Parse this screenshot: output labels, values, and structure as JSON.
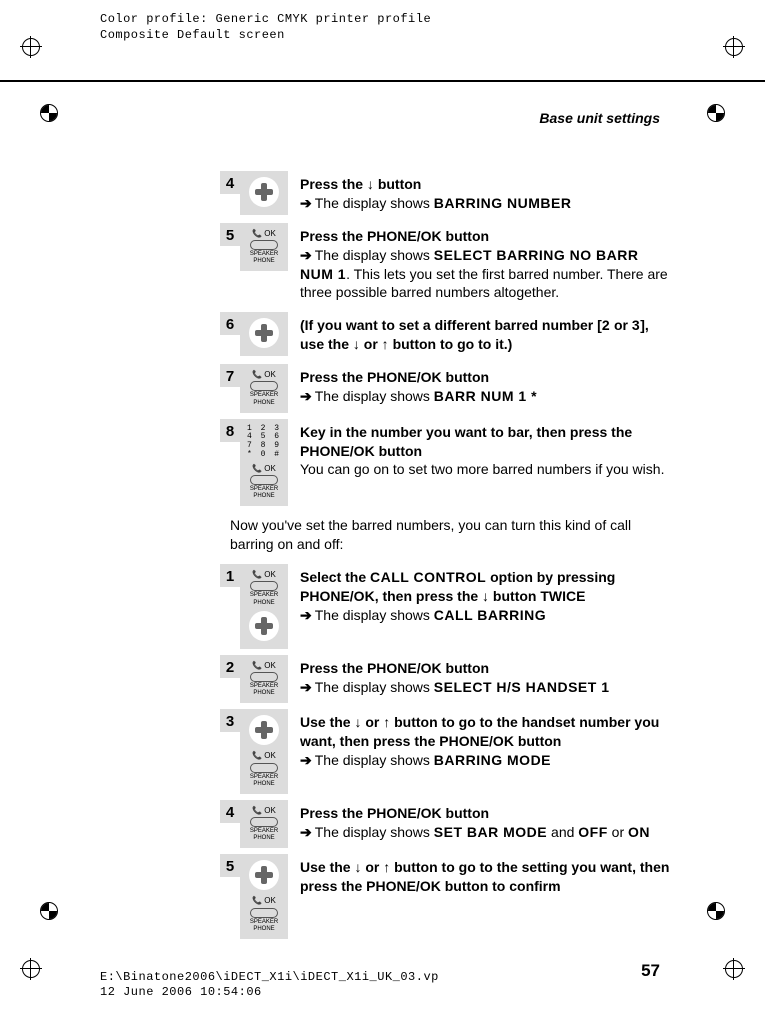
{
  "meta": {
    "profile_line1": "Color profile: Generic CMYK printer profile",
    "profile_line2": "Composite  Default screen",
    "footer_line1": "E:\\Binatone2006\\iDECT_X1i\\iDECT_X1i_UK_03.vp",
    "footer_line2": "12 June 2006 10:54:06"
  },
  "colors": {
    "grey_col": "#dcdcdc",
    "text": "#000000",
    "page_bg": "#ffffff"
  },
  "section_title": "Base unit settings",
  "page_number": "57",
  "top_steps": [
    {
      "num": "4",
      "icons": [
        "plus"
      ],
      "lines": [
        {
          "type": "bold",
          "text": "Press the ↓ button"
        },
        {
          "type": "arrow",
          "prefix": "The display shows ",
          "lcd": "BARRING NUMBER",
          "suffix": ""
        }
      ]
    },
    {
      "num": "5",
      "icons": [
        "speaker"
      ],
      "lines": [
        {
          "type": "bold",
          "parts": [
            "Press the ",
            {
              "b": "PHONE/OK"
            },
            " button"
          ]
        },
        {
          "type": "arrow",
          "prefix": "The display shows ",
          "lcd": "SELECT BARRING NO BARR NUM 1",
          "suffix": ". This lets you set the first barred number. There are three possible barred numbers altogether."
        }
      ]
    },
    {
      "num": "6",
      "icons": [
        "plus"
      ],
      "lines": [
        {
          "type": "bold",
          "parts": [
            "(If you want to set a different barred number [",
            {
              "lcd": "2"
            },
            " or ",
            {
              "lcd": "3"
            },
            "], use the ↓ or ↑ button to go to it.)"
          ]
        }
      ]
    },
    {
      "num": "7",
      "icons": [
        "speaker"
      ],
      "lines": [
        {
          "type": "bold",
          "parts": [
            "Press the ",
            {
              "b": "PHONE/OK"
            },
            " button"
          ]
        },
        {
          "type": "arrow",
          "prefix": "The display shows ",
          "lcd": "BARR NUM 1 *",
          "suffix": ""
        }
      ]
    },
    {
      "num": "8",
      "icons": [
        "keypad",
        "speaker"
      ],
      "lines": [
        {
          "type": "bold",
          "parts": [
            "Key in the number you want to bar, then press the ",
            {
              "b": "PHONE/OK"
            },
            " button"
          ]
        },
        {
          "type": "plain",
          "text": "You can go on to set two more barred numbers if you wish."
        }
      ]
    }
  ],
  "mid_para": "Now you've set the barred numbers, you can turn this kind of call barring on and off:",
  "bottom_steps": [
    {
      "num": "1",
      "icons": [
        "speaker",
        "plus"
      ],
      "lines": [
        {
          "type": "bold",
          "parts": [
            "Select the ",
            {
              "lcd": "CALL CONTROL"
            },
            " option by pressing ",
            {
              "b": "PHONE/OK"
            },
            ", then press the ↓ button TWICE"
          ]
        },
        {
          "type": "arrow",
          "prefix": "The display shows ",
          "lcd": "CALL BARRING",
          "suffix": ""
        }
      ]
    },
    {
      "num": "2",
      "icons": [
        "speaker"
      ],
      "lines": [
        {
          "type": "bold",
          "parts": [
            "Press the ",
            {
              "b": "PHONE/OK"
            },
            " button"
          ]
        },
        {
          "type": "arrow",
          "prefix": "The display shows ",
          "lcd": "SELECT H/S  HANDSET 1",
          "suffix": ""
        }
      ]
    },
    {
      "num": "3",
      "icons": [
        "plus",
        "speaker"
      ],
      "lines": [
        {
          "type": "bold",
          "parts": [
            "Use the ↓ or ↑ button to go to the handset number you want, then press the ",
            {
              "b": "PHONE/OK"
            },
            " button"
          ]
        },
        {
          "type": "arrow",
          "prefix": "The display shows ",
          "lcd": "BARRING MODE",
          "suffix": ""
        }
      ]
    },
    {
      "num": "4",
      "icons": [
        "speaker"
      ],
      "lines": [
        {
          "type": "bold",
          "parts": [
            "Press the ",
            {
              "b": "PHONE/OK"
            },
            " button"
          ]
        },
        {
          "type": "arrow_multi",
          "prefix": "The display shows ",
          "lcd1": "SET BAR MODE",
          "mid": " and ",
          "lcd2": "OFF",
          "mid2": " or ",
          "lcd3": "ON",
          "suffix": ""
        }
      ]
    },
    {
      "num": "5",
      "icons": [
        "plus",
        "speaker"
      ],
      "lines": [
        {
          "type": "bold",
          "parts": [
            "Use the ↓ or ↑ button to go to the setting you want, then press the ",
            {
              "b": "PHONE/OK"
            },
            " button to confirm"
          ]
        }
      ]
    }
  ],
  "speaker_label": {
    "ok": "OK",
    "l1": "SPEAKER",
    "l2": "PHONE"
  },
  "keypad_rows": [
    "1 2 3",
    "4 5 6",
    "7 8 9",
    "* 0 #"
  ]
}
